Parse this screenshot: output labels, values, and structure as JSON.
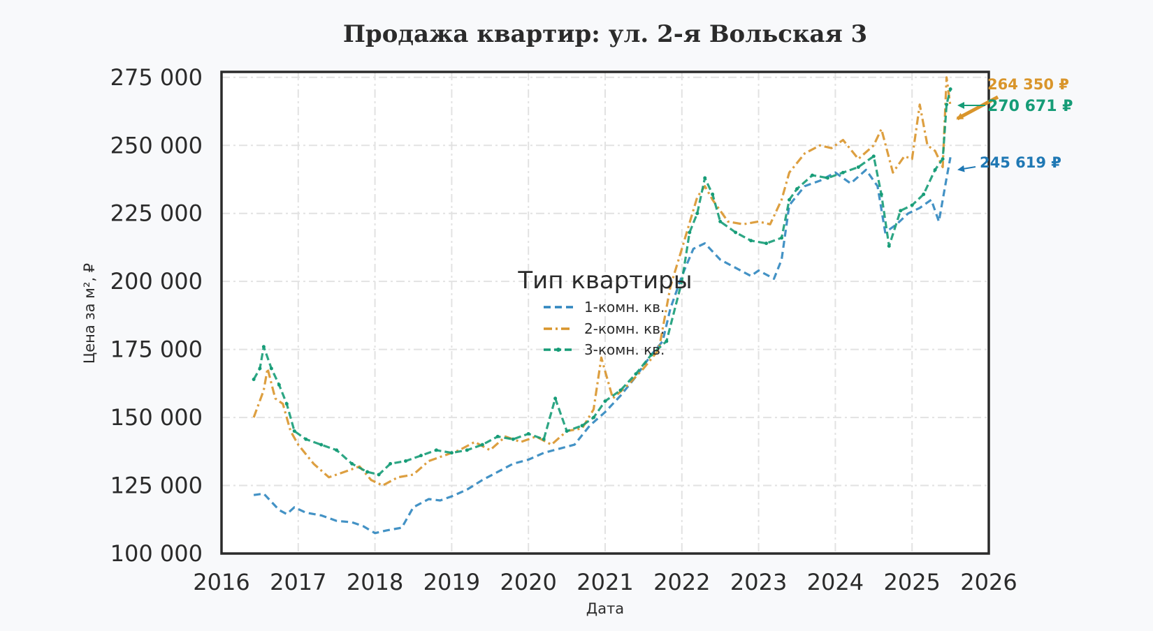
{
  "chart_data": {
    "type": "line",
    "title": "Продажа квартир: ул. 2-я Вольская 3",
    "xlabel": "Дата",
    "ylabel": "Цена за м², ₽",
    "xlim": [
      2016,
      2026
    ],
    "ylim": [
      100000,
      277000
    ],
    "x_ticks": [
      "2016",
      "2017",
      "2018",
      "2019",
      "2020",
      "2021",
      "2022",
      "2023",
      "2024",
      "2025",
      "2026"
    ],
    "y_ticks": [
      "100 000",
      "125 000",
      "150 000",
      "175 000",
      "200 000",
      "225 000",
      "250 000",
      "275 000"
    ],
    "grid": true,
    "legend": {
      "title": "Тип квартиры",
      "placement": "center"
    },
    "series": [
      {
        "name": "1-комн. кв.",
        "color": "#2f86bf",
        "dash": "dashed",
        "x": [
          2016.42,
          2016.55,
          2016.65,
          2016.75,
          2016.85,
          2016.95,
          2017.1,
          2017.3,
          2017.5,
          2017.7,
          2017.85,
          2018.0,
          2018.15,
          2018.35,
          2018.5,
          2018.7,
          2018.85,
          2019.0,
          2019.2,
          2019.4,
          2019.6,
          2019.8,
          2020.0,
          2020.2,
          2020.4,
          2020.6,
          2020.8,
          2021.0,
          2021.2,
          2021.4,
          2021.6,
          2021.75,
          2021.85,
          2022.0,
          2022.15,
          2022.3,
          2022.5,
          2022.7,
          2022.9,
          2023.0,
          2023.2,
          2023.3,
          2023.4,
          2023.6,
          2023.8,
          2024.0,
          2024.2,
          2024.4,
          2024.55,
          2024.65,
          2024.8,
          2024.95,
          2025.1,
          2025.25,
          2025.35,
          2025.45,
          2025.5
        ],
        "values": [
          121500,
          122000,
          119000,
          116000,
          114500,
          117000,
          115000,
          114000,
          112000,
          111500,
          110000,
          107500,
          108500,
          109500,
          117000,
          120000,
          119500,
          121000,
          123500,
          127000,
          130000,
          133000,
          134500,
          137000,
          138500,
          140000,
          147000,
          152000,
          158000,
          165000,
          173000,
          178000,
          190000,
          202000,
          212000,
          214000,
          208000,
          205000,
          202000,
          204000,
          201000,
          208000,
          228000,
          235000,
          237000,
          240000,
          236000,
          241000,
          235000,
          218000,
          221000,
          225000,
          227000,
          230000,
          222000,
          238000,
          245619
        ]
      },
      {
        "name": "2-комн. кв.",
        "color": "#d9952b",
        "dash": "dashdot",
        "x": [
          2016.42,
          2016.55,
          2016.6,
          2016.7,
          2016.8,
          2016.9,
          2017.0,
          2017.2,
          2017.4,
          2017.6,
          2017.8,
          2017.95,
          2018.1,
          2018.3,
          2018.5,
          2018.7,
          2018.9,
          2019.1,
          2019.3,
          2019.5,
          2019.7,
          2019.9,
          2020.1,
          2020.3,
          2020.5,
          2020.7,
          2020.85,
          2020.95,
          2021.1,
          2021.3,
          2021.5,
          2021.7,
          2021.85,
          2022.0,
          2022.2,
          2022.3,
          2022.4,
          2022.6,
          2022.8,
          2023.0,
          2023.15,
          2023.3,
          2023.4,
          2023.6,
          2023.8,
          2023.95,
          2024.1,
          2024.3,
          2024.5,
          2024.6,
          2024.75,
          2024.9,
          2025.0,
          2025.1,
          2025.2,
          2025.3,
          2025.4,
          2025.45,
          2025.5
        ],
        "values": [
          150000,
          160000,
          168000,
          157000,
          155000,
          145000,
          140000,
          133000,
          128000,
          130000,
          132000,
          127000,
          125000,
          128000,
          129000,
          134000,
          136000,
          138000,
          141000,
          138000,
          143000,
          141000,
          143000,
          140000,
          145000,
          146000,
          153000,
          172000,
          157000,
          162000,
          168000,
          175000,
          198000,
          212000,
          231000,
          235000,
          230000,
          222000,
          221000,
          222000,
          221000,
          230000,
          240000,
          247000,
          250000,
          249000,
          252000,
          245000,
          250000,
          256000,
          240000,
          246000,
          245000,
          265000,
          250000,
          248000,
          242000,
          275000,
          264350
        ]
      },
      {
        "name": "3-комн. кв.",
        "color": "#169c77",
        "dash": "dashed-marker",
        "x": [
          2016.42,
          2016.5,
          2016.55,
          2016.65,
          2016.75,
          2016.85,
          2016.95,
          2017.1,
          2017.3,
          2017.5,
          2017.7,
          2017.9,
          2018.05,
          2018.2,
          2018.4,
          2018.6,
          2018.8,
          2019.0,
          2019.2,
          2019.4,
          2019.6,
          2019.8,
          2020.0,
          2020.2,
          2020.35,
          2020.5,
          2020.7,
          2020.85,
          2021.0,
          2021.2,
          2021.4,
          2021.6,
          2021.8,
          2022.0,
          2022.1,
          2022.2,
          2022.3,
          2022.4,
          2022.5,
          2022.7,
          2022.9,
          2023.1,
          2023.3,
          2023.4,
          2023.5,
          2023.7,
          2023.9,
          2024.1,
          2024.3,
          2024.5,
          2024.6,
          2024.7,
          2024.85,
          2025.0,
          2025.15,
          2025.3,
          2025.4,
          2025.45,
          2025.5
        ],
        "values": [
          164000,
          168000,
          176000,
          168000,
          162000,
          155000,
          145000,
          142000,
          140000,
          138000,
          133000,
          130000,
          129000,
          133000,
          134000,
          136000,
          138000,
          137000,
          138000,
          140000,
          143000,
          142000,
          144000,
          142000,
          157000,
          145000,
          147000,
          150000,
          156000,
          160000,
          166000,
          173000,
          178000,
          200000,
          218000,
          225000,
          238000,
          232000,
          222000,
          218000,
          215000,
          214000,
          216000,
          230000,
          234000,
          239000,
          238000,
          240000,
          242000,
          246000,
          232000,
          213000,
          226000,
          228000,
          232000,
          241000,
          245000,
          265000,
          270671
        ]
      }
    ],
    "annotations": [
      {
        "series": "2-комн. кв.",
        "text": "264 350 ₽",
        "color": "#d9952b"
      },
      {
        "series": "3-комн. кв.",
        "text": "270 671 ₽",
        "color": "#169c77"
      },
      {
        "series": "1-комн. кв.",
        "text": "245 619 ₽",
        "color": "#1f78b4"
      }
    ]
  }
}
